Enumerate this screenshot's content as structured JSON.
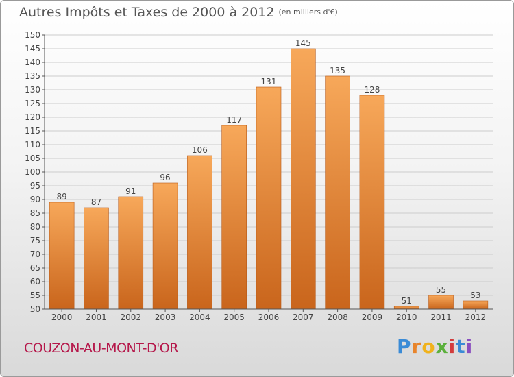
{
  "header": {
    "title": "Autres Impôts et Taxes de 2000 à 2012",
    "unit": "(en milliers d'€)"
  },
  "footer": {
    "commune": "COUZON-AU-MONT-D'OR",
    "brand": [
      "P",
      "r",
      "o",
      "x",
      "i",
      "t",
      "i"
    ]
  },
  "colors": {
    "bar_top": "#f7a85a",
    "bar_bottom": "#c9651c",
    "axis_text": "#444444",
    "grid": "#cccccc"
  },
  "chart_data": {
    "type": "bar",
    "title": "Autres Impôts et Taxes de 2000 à 2012",
    "subtitle": "(en milliers d'€)",
    "categories": [
      "2000",
      "2001",
      "2002",
      "2003",
      "2004",
      "2005",
      "2006",
      "2007",
      "2008",
      "2009",
      "2010",
      "2011",
      "2012"
    ],
    "values": [
      89,
      87,
      91,
      96,
      106,
      117,
      131,
      145,
      135,
      128,
      51,
      55,
      53
    ],
    "ylim": [
      50,
      150
    ],
    "yticks": [
      50,
      55,
      60,
      65,
      70,
      75,
      80,
      85,
      90,
      95,
      100,
      105,
      110,
      115,
      120,
      125,
      130,
      135,
      140,
      145,
      150
    ],
    "grid": true,
    "data_labels": true,
    "legend": "none"
  }
}
